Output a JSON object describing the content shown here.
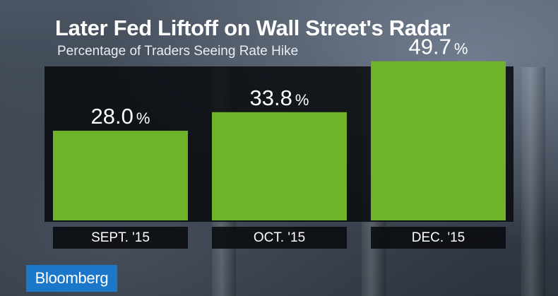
{
  "title": "Later Fed Liftoff on Wall Street's Radar",
  "subtitle": "Percentage of Traders Seeing Rate Hike",
  "logo": "Bloomberg",
  "colors": {
    "bar": "#6fb32b",
    "panel": "#0a0c10",
    "text": "#ffffff",
    "brand": "#1b77c9"
  },
  "chart_data": {
    "type": "bar",
    "categories": [
      "SEPT. '15",
      "OCT. '15",
      "DEC. '15"
    ],
    "values": [
      28.0,
      33.8,
      49.7
    ],
    "labels": [
      "28.0",
      "33.8",
      "49.7"
    ],
    "unit": "%",
    "title": "Later Fed Liftoff on Wall Street's Radar",
    "subtitle": "Percentage of Traders Seeing Rate Hike",
    "xlabel": "",
    "ylabel": "",
    "ylim": [
      0,
      60
    ],
    "grid": false,
    "legend": "none"
  }
}
